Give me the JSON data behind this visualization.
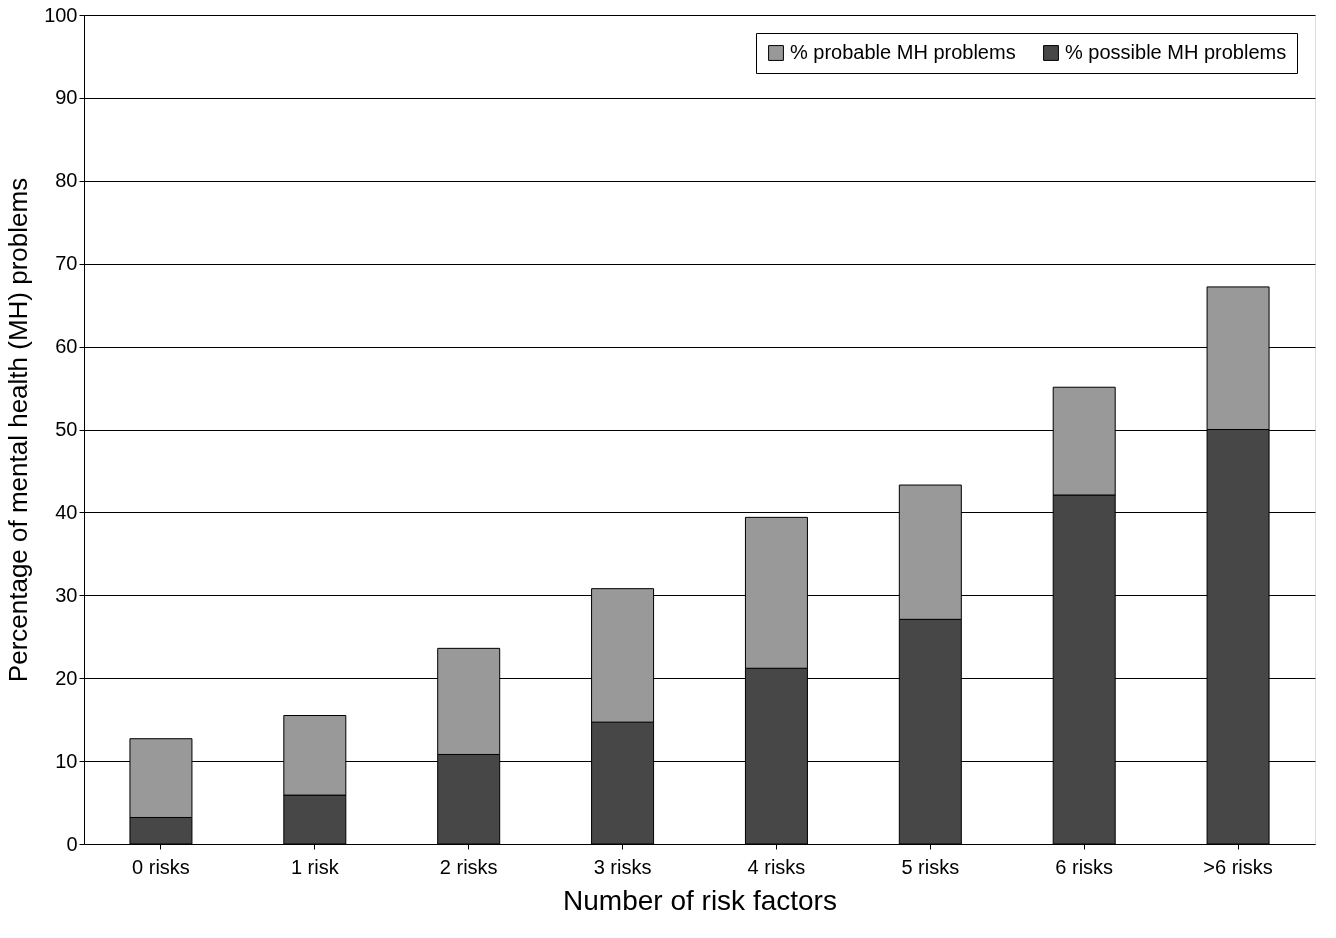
{
  "chart_data": {
    "type": "bar",
    "stacked": true,
    "xlabel": "Number of risk factors",
    "ylabel": "Percentage of mental health (MH) problems",
    "categories": [
      "0 risks",
      "1 risk",
      "2 risks",
      "3 risks",
      "4 risks",
      "5 risks",
      "6 risks",
      ">6 risks"
    ],
    "series": [
      {
        "name": "% possible MH problems",
        "color": "#474747",
        "values": [
          3.2,
          5.9,
          10.8,
          14.7,
          21.2,
          27.1,
          42.1,
          50.0
        ]
      },
      {
        "name": "% probable MH problems",
        "color": "#999999",
        "values": [
          9.5,
          9.6,
          12.8,
          16.1,
          18.2,
          16.2,
          13.0,
          17.2
        ]
      }
    ],
    "ylim": [
      0,
      100
    ],
    "yticks": [
      0,
      10,
      20,
      30,
      40,
      50,
      60,
      70,
      80,
      90,
      100
    ],
    "grid": "y",
    "legend": "top right"
  }
}
